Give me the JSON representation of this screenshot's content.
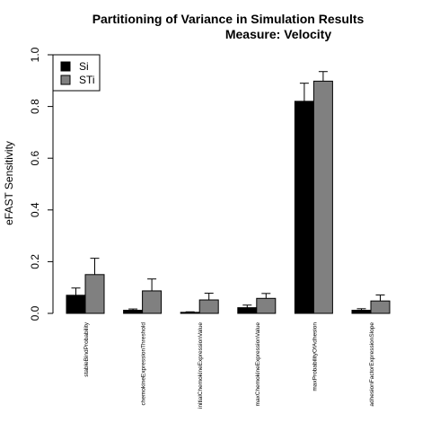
{
  "chart_data": {
    "type": "bar",
    "title": "Partitioning of Variance in Simulation Results",
    "subtitle": "Measure: Velocity",
    "xlabel": "",
    "ylabel": "eFAST Sensitivity",
    "ylim": [
      0,
      1
    ],
    "yticks": [
      "0.0",
      "0.2",
      "0.4",
      "0.6",
      "0.8",
      "1.0"
    ],
    "grid": false,
    "legend_position": "top-left",
    "categories": [
      "stableBindProbability",
      "chemokineExpressionThreshold",
      "initialChemokineExpressionValue",
      "maxChemokineExpressionValue",
      "maxProbabilityOfAdhesion",
      "adhesionFactorExpressionSlope"
    ],
    "series": [
      {
        "name": "Si",
        "color": "#000000",
        "values": [
          0.07,
          0.012,
          0.004,
          0.022,
          0.82,
          0.012
        ],
        "error_upper": [
          0.098,
          0.017,
          0.006,
          0.032,
          0.89,
          0.018
        ]
      },
      {
        "name": "STi",
        "color": "#808080",
        "values": [
          0.15,
          0.087,
          0.052,
          0.058,
          0.898,
          0.048
        ],
        "error_upper": [
          0.213,
          0.133,
          0.078,
          0.077,
          0.935,
          0.071
        ]
      }
    ]
  }
}
